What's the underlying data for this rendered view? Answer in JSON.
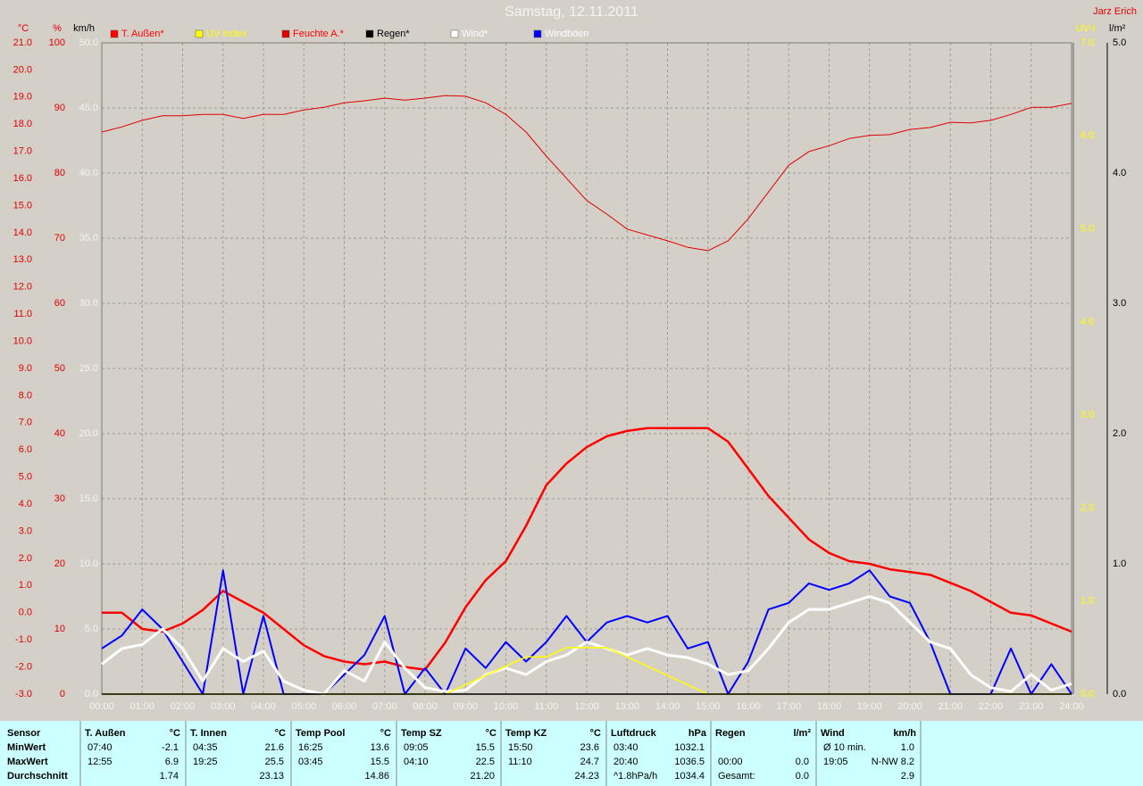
{
  "chart_data": {
    "type": "line",
    "title": "Samstag, 12.11.2011",
    "author": "Jarz Erich",
    "x": [
      0,
      0.5,
      1,
      1.5,
      2,
      2.5,
      3,
      3.5,
      4,
      4.5,
      5,
      5.5,
      6,
      6.5,
      7,
      7.5,
      8,
      8.5,
      9,
      9.5,
      10,
      10.5,
      11,
      11.5,
      12,
      12.5,
      13,
      13.5,
      14,
      14.5,
      15,
      15.5,
      16,
      16.5,
      17,
      17.5,
      18,
      18.5,
      19,
      19.5,
      20,
      20.5,
      21,
      21.5,
      22,
      22.5,
      23,
      23.5,
      24
    ],
    "xlim": [
      0,
      24
    ],
    "xticks": [
      {
        "value": 0,
        "label": "00:00"
      },
      {
        "value": 1,
        "label": "01:00"
      },
      {
        "value": 2,
        "label": "02:00"
      },
      {
        "value": 3,
        "label": "03:00"
      },
      {
        "value": 4,
        "label": "04:00"
      },
      {
        "value": 5,
        "label": "05:00"
      },
      {
        "value": 6,
        "label": "06:00"
      },
      {
        "value": 7,
        "label": "07:00"
      },
      {
        "value": 8,
        "label": "08:00"
      },
      {
        "value": 9,
        "label": "09:00"
      },
      {
        "value": 10,
        "label": "10:00"
      },
      {
        "value": 11,
        "label": "11:00"
      },
      {
        "value": 12,
        "label": "12:00"
      },
      {
        "value": 13,
        "label": "13:00"
      },
      {
        "value": 14,
        "label": "14:00"
      },
      {
        "value": 15,
        "label": "15:00"
      },
      {
        "value": 16,
        "label": "16:00"
      },
      {
        "value": 17,
        "label": "17:00"
      },
      {
        "value": 18,
        "label": "18:00"
      },
      {
        "value": 19,
        "label": "19:00"
      },
      {
        "value": 20,
        "label": "20:00"
      },
      {
        "value": 21,
        "label": "21:00"
      },
      {
        "value": 22,
        "label": "22:00"
      },
      {
        "value": 23,
        "label": "23:00"
      },
      {
        "value": 24,
        "label": "24:00"
      }
    ],
    "ylabel": "km/h",
    "ylim": [
      0,
      50
    ],
    "yticks": [
      {
        "value": 0,
        "label": "0.0"
      },
      {
        "value": 5,
        "label": "5.0"
      },
      {
        "value": 10,
        "label": "10.0"
      },
      {
        "value": 15,
        "label": "15.0"
      },
      {
        "value": 20,
        "label": "20.0"
      },
      {
        "value": 25,
        "label": "25.0"
      },
      {
        "value": 30,
        "label": "30.0"
      },
      {
        "value": 35,
        "label": "35.0"
      },
      {
        "value": 40,
        "label": "40.0"
      },
      {
        "value": 45,
        "label": "45.0"
      },
      {
        "value": 50,
        "label": "50.0"
      }
    ],
    "grid": true,
    "axes": [
      {
        "label": "°C",
        "side": "left",
        "color": "#e00000",
        "lim": [
          -3,
          21
        ],
        "ticks": [
          {
            "value": -3,
            "label": "-3.0"
          },
          {
            "value": -2,
            "label": "-2.0"
          },
          {
            "value": -1,
            "label": "-1.0"
          },
          {
            "value": 0,
            "label": "0.0"
          },
          {
            "value": 1,
            "label": "1.0"
          },
          {
            "value": 2,
            "label": "2.0"
          },
          {
            "value": 3,
            "label": "3.0"
          },
          {
            "value": 4,
            "label": "4.0"
          },
          {
            "value": 5,
            "label": "5.0"
          },
          {
            "value": 6,
            "label": "6.0"
          },
          {
            "value": 7,
            "label": "7.0"
          },
          {
            "value": 8,
            "label": "8.0"
          },
          {
            "value": 9,
            "label": "9.0"
          },
          {
            "value": 10,
            "label": "10.0"
          },
          {
            "value": 11,
            "label": "11.0"
          },
          {
            "value": 12,
            "label": "12.0"
          },
          {
            "value": 13,
            "label": "13.0"
          },
          {
            "value": 14,
            "label": "14.0"
          },
          {
            "value": 15,
            "label": "15.0"
          },
          {
            "value": 16,
            "label": "16.0"
          },
          {
            "value": 17,
            "label": "17.0"
          },
          {
            "value": 18,
            "label": "18.0"
          },
          {
            "value": 19,
            "label": "19.0"
          },
          {
            "value": 20,
            "label": "20.0"
          },
          {
            "value": 21,
            "label": "21.0"
          }
        ]
      },
      {
        "label": "%",
        "side": "left",
        "color": "#e00000",
        "lim": [
          0,
          100
        ],
        "ticks": [
          0,
          10,
          20,
          30,
          40,
          50,
          60,
          70,
          80,
          90,
          100
        ]
      },
      {
        "label": "UV-I",
        "side": "right",
        "color": "#ffff00",
        "lim": [
          0,
          7
        ],
        "ticks": [
          {
            "value": 0,
            "label": "0.0"
          },
          {
            "value": 1,
            "label": "1.0"
          },
          {
            "value": 2,
            "label": "2.0"
          },
          {
            "value": 3,
            "label": "3.0"
          },
          {
            "value": 4,
            "label": "4.0"
          },
          {
            "value": 5,
            "label": "5.0"
          },
          {
            "value": 6,
            "label": "6.0"
          },
          {
            "value": 7,
            "label": "7.0"
          }
        ]
      },
      {
        "label": "l/m²",
        "side": "right",
        "color": "#000000",
        "lim": [
          0,
          5
        ],
        "ticks": [
          {
            "value": 0,
            "label": "0.0"
          },
          {
            "value": 1,
            "label": "1.0"
          },
          {
            "value": 2,
            "label": "2.0"
          },
          {
            "value": 3,
            "label": "3.0"
          },
          {
            "value": 4,
            "label": "4.0"
          },
          {
            "value": 5,
            "label": "5.0"
          }
        ]
      }
    ],
    "series": [
      {
        "name": "T. Außen*",
        "color": "#ff0000",
        "label_color": "#ff0000",
        "axis": 0,
        "values": [
          0.0,
          0.0,
          -0.6,
          -0.7,
          -0.4,
          0.1,
          0.8,
          0.4,
          0.0,
          -0.6,
          -1.2,
          -1.6,
          -1.8,
          -1.9,
          -1.8,
          -2.0,
          -2.1,
          -1.1,
          0.2,
          1.2,
          1.9,
          3.2,
          4.7,
          5.5,
          6.1,
          6.5,
          6.7,
          6.8,
          6.8,
          6.8,
          6.8,
          6.3,
          5.3,
          4.3,
          3.5,
          2.7,
          2.2,
          1.9,
          1.8,
          1.6,
          1.5,
          1.4,
          1.1,
          0.8,
          0.4,
          0.0,
          -0.1,
          -0.4,
          -0.7
        ]
      },
      {
        "name": "UV Index",
        "color": "#ffff00",
        "label_color": "#ffff00",
        "axis": 2,
        "values": [
          0,
          0,
          0,
          0,
          0,
          0,
          0,
          0,
          0,
          0,
          0,
          0,
          0,
          0,
          0,
          0,
          0,
          0,
          0.1,
          0.2,
          0.3,
          0.4,
          0.4,
          0.5,
          0.5,
          0.5,
          0.4,
          0.3,
          0.2,
          0.1,
          0,
          0,
          0,
          0,
          0,
          0,
          0,
          0,
          0,
          0,
          0,
          0,
          0,
          0,
          0,
          0,
          0,
          0,
          0
        ]
      },
      {
        "name": "Feuchte A.*",
        "color": "#e00000",
        "label_color": "#ff0000",
        "axis": 1,
        "values": [
          86.3,
          87.1,
          88.1,
          88.8,
          88.8,
          89.0,
          89.0,
          88.4,
          89.0,
          89.0,
          89.7,
          90.1,
          90.8,
          91.1,
          91.5,
          91.2,
          91.5,
          91.9,
          91.8,
          90.8,
          89.0,
          86.3,
          82.6,
          79.2,
          75.8,
          73.7,
          71.4,
          70.5,
          69.6,
          68.6,
          68.1,
          69.6,
          73.0,
          77.1,
          81.2,
          83.3,
          84.2,
          85.3,
          85.8,
          85.9,
          86.7,
          87.0,
          87.8,
          87.7,
          88.1,
          89.0,
          90.1,
          90.1,
          90.7
        ]
      },
      {
        "name": "Regen*",
        "color": "#000000",
        "label_color": "#000000",
        "axis": 3,
        "values": [
          0,
          0,
          0,
          0,
          0,
          0,
          0,
          0,
          0,
          0,
          0,
          0,
          0,
          0,
          0,
          0,
          0,
          0,
          0,
          0,
          0,
          0,
          0,
          0,
          0,
          0,
          0,
          0,
          0,
          0,
          0,
          0,
          0,
          0,
          0,
          0,
          0,
          0,
          0,
          0,
          0,
          0,
          0,
          0,
          0,
          0,
          0,
          0,
          0
        ]
      },
      {
        "name": "Wind*",
        "color": "#ffffff",
        "label_color": "#ffffff",
        "values": [
          2.3,
          3.5,
          3.8,
          5.0,
          3.5,
          1.0,
          3.5,
          2.5,
          3.3,
          1.0,
          0.3,
          0.0,
          1.8,
          1.0,
          4.0,
          2.0,
          0.5,
          0.2,
          0.3,
          1.5,
          2.0,
          1.5,
          2.5,
          3.0,
          4.0,
          3.5,
          3.0,
          3.5,
          3.0,
          2.8,
          2.3,
          1.5,
          1.8,
          3.5,
          5.5,
          6.5,
          6.5,
          7.0,
          7.5,
          7.0,
          5.5,
          4.0,
          3.5,
          1.5,
          0.5,
          0.2,
          1.5,
          0.3,
          0.8
        ]
      },
      {
        "name": "Windböen",
        "color": "#0000ff",
        "label_color": "#ffffff",
        "values": [
          3.5,
          4.5,
          6.5,
          5.0,
          2.5,
          0.0,
          9.5,
          0.0,
          6.0,
          0.0,
          0.0,
          0.0,
          1.5,
          3.0,
          6.0,
          0.0,
          2.0,
          0.0,
          3.5,
          2.0,
          4.0,
          2.5,
          4.0,
          6.0,
          4.0,
          5.5,
          6.0,
          5.5,
          6.0,
          3.5,
          4.0,
          0.0,
          2.5,
          6.5,
          7.0,
          8.5,
          8.0,
          8.5,
          9.5,
          7.5,
          7.0,
          4.0,
          0.0,
          0.0,
          0.0,
          3.5,
          0.0,
          2.3,
          0.0
        ]
      }
    ]
  },
  "table": {
    "row_labels": [
      "Sensor",
      "MinWert",
      "MaxWert",
      "Durchschnitt"
    ],
    "groups": [
      {
        "name": "T. Außen",
        "unit": "°C",
        "rows": [
          [
            "07:40",
            "-2.1"
          ],
          [
            "12:55",
            "6.9"
          ],
          [
            null,
            "1.74"
          ]
        ]
      },
      {
        "name": "T. Innen",
        "unit": "°C",
        "rows": [
          [
            "04:35",
            "21.6"
          ],
          [
            "19:25",
            "25.5"
          ],
          [
            null,
            "23.13"
          ]
        ]
      },
      {
        "name": "Temp Pool",
        "unit": "°C",
        "rows": [
          [
            "16:25",
            "13.6"
          ],
          [
            "03:45",
            "15.5"
          ],
          [
            null,
            "14.86"
          ]
        ]
      },
      {
        "name": "Temp SZ",
        "unit": "°C",
        "rows": [
          [
            "09:05",
            "15.5"
          ],
          [
            "04:10",
            "22.5"
          ],
          [
            null,
            "21.20"
          ]
        ]
      },
      {
        "name": "Temp KZ",
        "unit": "°C",
        "rows": [
          [
            "15:50",
            "23.6"
          ],
          [
            "11:10",
            "24.7"
          ],
          [
            null,
            "24.23"
          ]
        ]
      },
      {
        "name": "Luftdruck",
        "unit": "hPa",
        "rows": [
          [
            "03:40",
            "1032.1"
          ],
          [
            "20:40",
            "1036.5"
          ],
          [
            "^1.8hPa/h",
            "1034.4"
          ]
        ]
      },
      {
        "name": "Regen",
        "unit": "l/m²",
        "rows": [
          [
            null,
            null
          ],
          [
            "00:00",
            "0.0"
          ],
          [
            "Gesamt:",
            "0.0"
          ]
        ]
      },
      {
        "name": "Wind",
        "unit": "km/h",
        "rows": [
          [
            "Ø 10 min.",
            "1.0"
          ],
          [
            "19:05",
            "N-NW 8.2"
          ],
          [
            null,
            "2.9"
          ]
        ]
      }
    ]
  }
}
